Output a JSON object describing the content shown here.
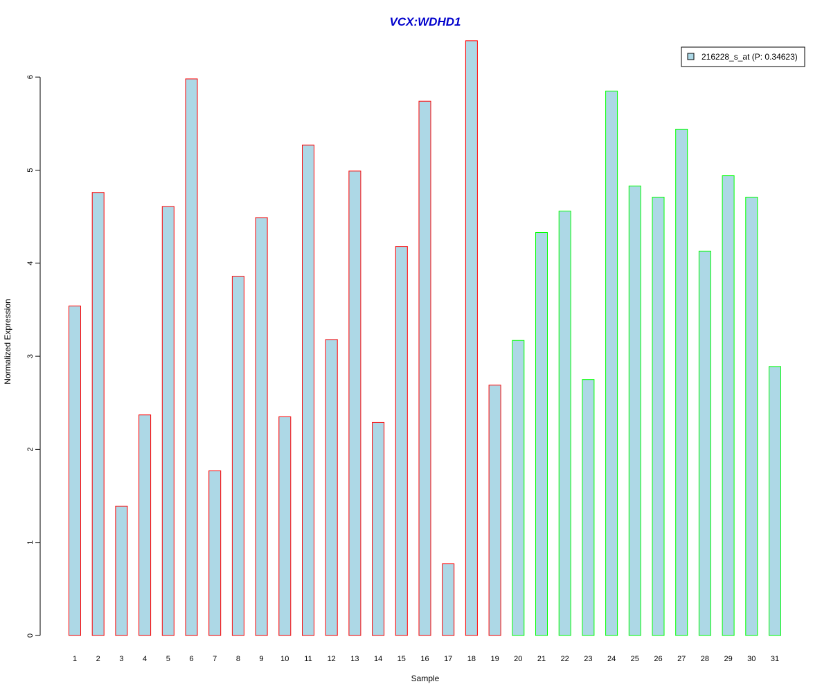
{
  "chart_data": {
    "type": "bar",
    "title": "VCX:WDHD1",
    "xlabel": "Sample",
    "ylabel": "Normalized Expression",
    "ylim": [
      0,
      6.4
    ],
    "yticks": [
      "0",
      "1",
      "2",
      "3",
      "4",
      "5",
      "6"
    ],
    "grid": false,
    "legend_position": "top-right",
    "categories": [
      "1",
      "2",
      "3",
      "4",
      "5",
      "6",
      "7",
      "8",
      "9",
      "10",
      "11",
      "12",
      "13",
      "14",
      "15",
      "16",
      "17",
      "18",
      "19",
      "20",
      "21",
      "22",
      "23",
      "24",
      "25",
      "26",
      "27",
      "28",
      "29",
      "30",
      "31"
    ],
    "series": [
      {
        "name": "216228_s_at (P: 0.34623)",
        "values": [
          3.54,
          4.76,
          1.39,
          2.37,
          4.61,
          5.98,
          1.77,
          3.86,
          4.49,
          2.35,
          5.27,
          3.18,
          4.99,
          2.29,
          4.18,
          5.74,
          0.77,
          6.39,
          2.69,
          3.17,
          4.33,
          4.56,
          2.75,
          5.85,
          4.83,
          4.71,
          5.44,
          4.13,
          4.94,
          4.71,
          2.89
        ]
      }
    ],
    "groups": [
      {
        "samples_from": 1,
        "samples_to": 19,
        "border_color": "#ff0000"
      },
      {
        "samples_from": 20,
        "samples_to": 31,
        "border_color": "#00ff00"
      }
    ],
    "colors": {
      "bar_fill": "#add8e6",
      "title": "#0000cc",
      "axis": "#000000",
      "legend_border": "#000000"
    }
  }
}
